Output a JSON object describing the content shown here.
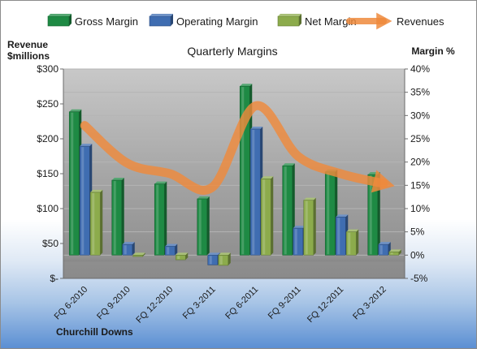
{
  "chart_data": {
    "type": "bar",
    "title": "Quarterly Margins",
    "company": "Churchill Downs",
    "categories": [
      "FQ 6-2010",
      "FQ 9-2010",
      "FQ 12-2010",
      "FQ 3-2011",
      "FQ 6-2011",
      "FQ 9-2011",
      "FQ 12-2011",
      "FQ 3-2012"
    ],
    "y_left": {
      "label_line1": "Revenue",
      "label_line2": "$millions",
      "range": [
        0,
        300
      ],
      "ticks": [
        0,
        50,
        100,
        150,
        200,
        250,
        300
      ],
      "tick_labels": [
        "$-",
        "$50",
        "$100",
        "$150",
        "$200",
        "$250",
        "$300"
      ]
    },
    "y_right": {
      "label": "Margin %",
      "range": [
        -5,
        40
      ],
      "ticks": [
        -5,
        0,
        5,
        10,
        15,
        20,
        25,
        30,
        35,
        40
      ],
      "tick_labels": [
        "-5%",
        "0%",
        "5%",
        "10%",
        "15%",
        "20%",
        "25%",
        "30%",
        "35%",
        "40%"
      ]
    },
    "series": [
      {
        "name": "Gross Margin",
        "axis": "right",
        "kind": "bar",
        "color": "#1e8a44",
        "values": [
          30.8,
          16.1,
          15.3,
          12.1,
          36.3,
          19.2,
          17.9,
          17.3
        ]
      },
      {
        "name": "Operating Margin",
        "axis": "right",
        "kind": "bar",
        "color": "#3f6db1",
        "values": [
          23.4,
          2.3,
          1.9,
          -2.1,
          27.1,
          5.8,
          8.2,
          2.3
        ]
      },
      {
        "name": "Net Margin",
        "axis": "right",
        "kind": "bar",
        "color": "#8cab4c",
        "values": [
          13.5,
          -0.3,
          -1.0,
          -2.2,
          16.4,
          11.8,
          5.0,
          0.7
        ]
      },
      {
        "name": "Revenues",
        "axis": "left",
        "kind": "line",
        "color": "#ef8a3c",
        "values": [
          219,
          165,
          150,
          131,
          247,
          175,
          150,
          136
        ]
      }
    ],
    "legend": {
      "position": "top"
    },
    "grid": true
  }
}
